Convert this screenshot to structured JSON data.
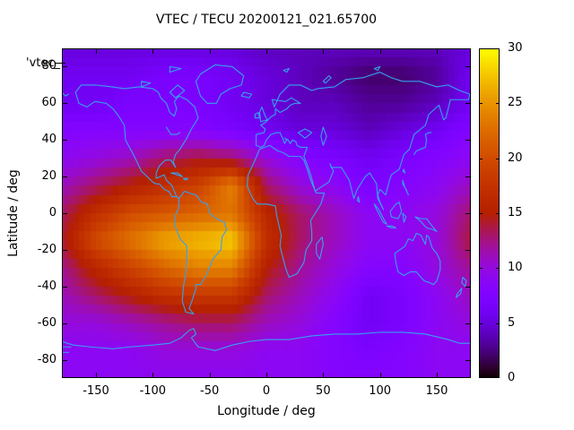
{
  "title": "VTEC / TECU 20200121_021.65700",
  "key_label": "'vtec_",
  "axes": {
    "xlabel": "Longitude / deg",
    "ylabel": "Latitude / deg",
    "x_ticks": [
      -150,
      -100,
      -50,
      0,
      50,
      100,
      150
    ],
    "y_ticks": [
      80,
      60,
      40,
      20,
      0,
      -20,
      -40,
      -60,
      -80
    ],
    "x_range": [
      -180,
      180
    ],
    "y_range": [
      -90,
      90
    ]
  },
  "colorbar": {
    "ticks": [
      0,
      5,
      10,
      15,
      20,
      25,
      30
    ],
    "min": 0,
    "max": 30,
    "palette": "gnuplot pm3d default (black-blue-violet-magenta-red-orange-yellow)"
  },
  "colors": {
    "coastline": "#35a2f0",
    "frame": "#000000",
    "background": "#ffffff",
    "text": "#000000"
  },
  "chart_data": {
    "type": "heatmap",
    "title": "VTEC / TECU 20200121_021.65700",
    "xlabel": "Longitude / deg",
    "ylabel": "Latitude / deg",
    "units": "TECU",
    "zlim": [
      0,
      30
    ],
    "legend": "'vtec_",
    "overlay": "world coastlines drawn in light blue",
    "lon": [
      -180,
      -150,
      -120,
      -90,
      -60,
      -30,
      0,
      30,
      60,
      90,
      120,
      150,
      180
    ],
    "lat": [
      90,
      75,
      60,
      45,
      30,
      15,
      0,
      -15,
      -30,
      -45,
      -60,
      -75,
      -90
    ],
    "values": [
      [
        5,
        5,
        5,
        5,
        5,
        5,
        4,
        4,
        4,
        4,
        4,
        4,
        5
      ],
      [
        6,
        6,
        6,
        7,
        7,
        6,
        5,
        4,
        3,
        2,
        2,
        3,
        6
      ],
      [
        6,
        6,
        7,
        7,
        7,
        6,
        5,
        4,
        4,
        3,
        3,
        4,
        6
      ],
      [
        8,
        8,
        8,
        8,
        8,
        7,
        6,
        5,
        5,
        4,
        5,
        6,
        8
      ],
      [
        9,
        10,
        11,
        13,
        14,
        13,
        10,
        8,
        7,
        6,
        7,
        8,
        9
      ],
      [
        11,
        13,
        15,
        17,
        19,
        24,
        13,
        10,
        9,
        7,
        8,
        9,
        11
      ],
      [
        13,
        17,
        20,
        21,
        22,
        23,
        16,
        13,
        11,
        9,
        9,
        10,
        13
      ],
      [
        14,
        20,
        23,
        26,
        27,
        28,
        17,
        13,
        11,
        9,
        9,
        10,
        14
      ],
      [
        12,
        16,
        19,
        22,
        24,
        24,
        15,
        12,
        10,
        8,
        8,
        10,
        12
      ],
      [
        11,
        13,
        15,
        17,
        18,
        18,
        13,
        11,
        9,
        6,
        7,
        9,
        11
      ],
      [
        10,
        10,
        11,
        12,
        13,
        13,
        11,
        10,
        8,
        6,
        7,
        9,
        10
      ],
      [
        9,
        9,
        9,
        10,
        10,
        10,
        9,
        9,
        8,
        7,
        8,
        9,
        9
      ],
      [
        9,
        9,
        9,
        9,
        9,
        9,
        9,
        9,
        8,
        8,
        8,
        9,
        9
      ]
    ]
  }
}
